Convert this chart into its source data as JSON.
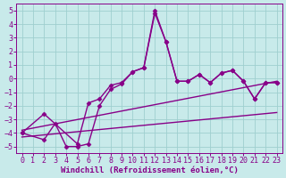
{
  "background_color": "#c8eaea",
  "grid_color": "#9fcfcf",
  "line_color": "#880088",
  "marker": "D",
  "markersize": 2.5,
  "linewidth": 1.0,
  "xlabel": "Windchill (Refroidissement éolien,°C)",
  "xlabel_fontsize": 6.5,
  "tick_fontsize": 6,
  "xlim": [
    -0.5,
    23.5
  ],
  "ylim": [
    -5.5,
    5.5
  ],
  "yticks": [
    -5,
    -4,
    -3,
    -2,
    -1,
    0,
    1,
    2,
    3,
    4,
    5
  ],
  "xticks": [
    0,
    1,
    2,
    3,
    4,
    5,
    6,
    7,
    8,
    9,
    10,
    11,
    12,
    13,
    14,
    15,
    16,
    17,
    18,
    19,
    20,
    21,
    22,
    23
  ],
  "series": [
    {
      "x": [
        0,
        2,
        5,
        6,
        7,
        8,
        9,
        10,
        11,
        12,
        13,
        14,
        15,
        16,
        17,
        18,
        19,
        20,
        21,
        22,
        23
      ],
      "y": [
        -4,
        -2.6,
        -4.8,
        -1.8,
        -1.5,
        -0.5,
        -0.3,
        0.5,
        0.8,
        5.0,
        2.7,
        -0.2,
        -0.2,
        0.3,
        -0.3,
        0.4,
        0.6,
        -0.2,
        -1.5,
        -0.3,
        -0.3
      ],
      "with_markers": true
    },
    {
      "x": [
        0,
        2,
        3,
        4,
        5,
        6,
        7,
        8,
        9,
        10,
        11,
        12,
        13,
        14,
        15,
        16,
        17,
        18,
        19,
        20,
        21,
        22,
        23
      ],
      "y": [
        -4,
        -4.5,
        -3.3,
        -5.0,
        -5.0,
        -4.8,
        -2.0,
        -0.8,
        -0.4,
        0.5,
        0.8,
        4.8,
        2.7,
        -0.2,
        -0.2,
        0.3,
        -0.3,
        0.4,
        0.6,
        -0.2,
        -1.5,
        -0.3,
        -0.3
      ],
      "with_markers": true
    },
    {
      "x": [
        0,
        23
      ],
      "y": [
        -3.8,
        -0.2
      ],
      "with_markers": false
    },
    {
      "x": [
        0,
        23
      ],
      "y": [
        -4.3,
        -2.5
      ],
      "with_markers": false
    }
  ]
}
